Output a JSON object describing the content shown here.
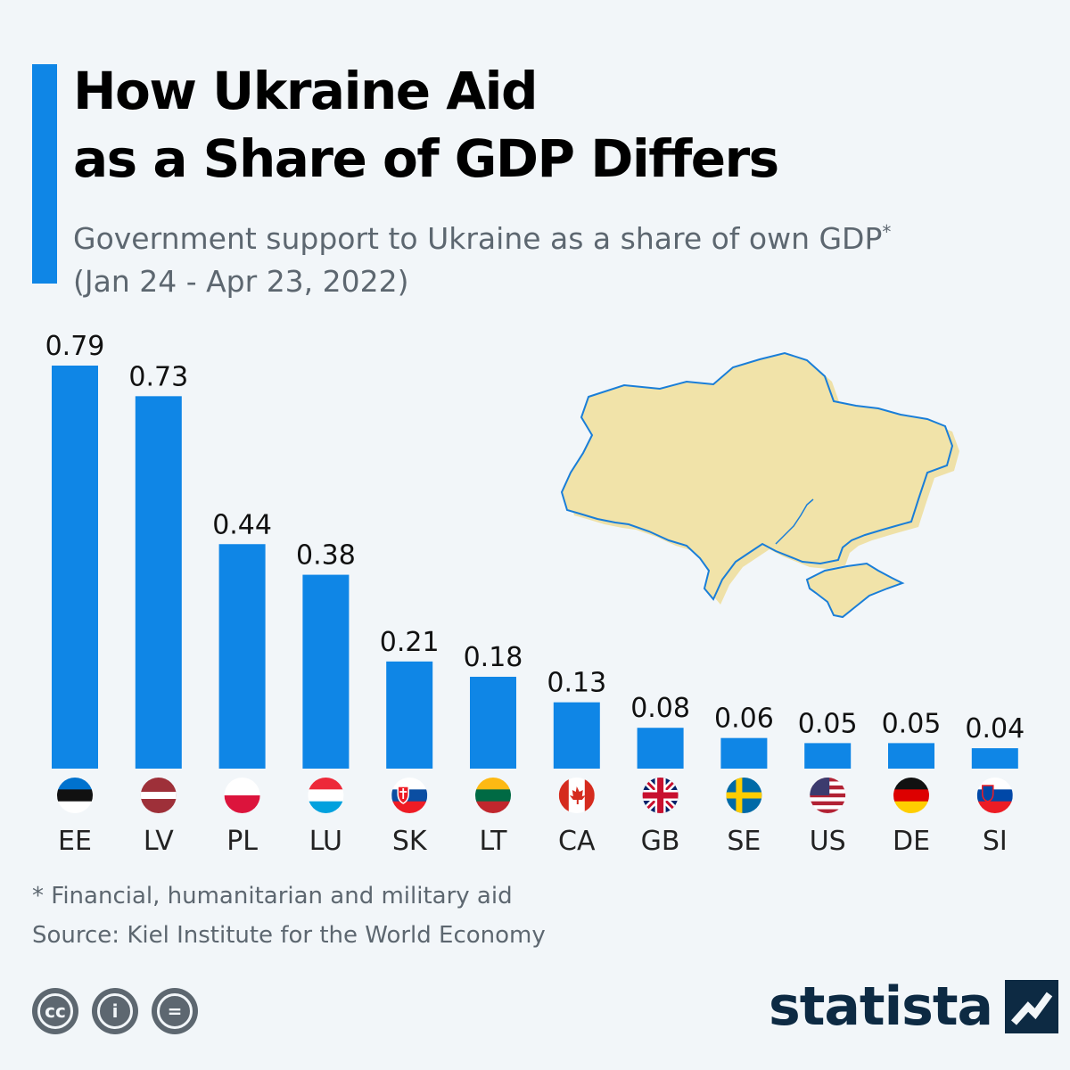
{
  "header": {
    "title_line1": "How Ukraine Aid",
    "title_line2": "as a Share of GDP Differs",
    "subtitle_line1": "Government support to Ukraine as a share of own GDP",
    "subtitle_asterisk": "*",
    "subtitle_line2": "(Jan 24 - Apr 23, 2022)"
  },
  "chart_data": {
    "type": "bar",
    "title": "How Ukraine Aid as a Share of GDP Differs",
    "subtitle": "Government support to Ukraine as a share of own GDP* (Jan 24 - Apr 23, 2022)",
    "categories": [
      "EE",
      "LV",
      "PL",
      "LU",
      "SK",
      "LT",
      "CA",
      "GB",
      "SE",
      "US",
      "DE",
      "SI"
    ],
    "values": [
      0.79,
      0.73,
      0.44,
      0.38,
      0.21,
      0.18,
      0.13,
      0.08,
      0.06,
      0.05,
      0.05,
      0.04
    ],
    "value_labels": [
      "0.79",
      "0.73",
      "0.44",
      "0.38",
      "0.21",
      "0.18",
      "0.13",
      "0.08",
      "0.06",
      "0.05",
      "0.05",
      "0.04"
    ],
    "ylim": [
      0,
      0.79
    ],
    "grid": false,
    "bar_color": "#0f86e6",
    "show_flags": true
  },
  "map": {
    "icon": "ukraine-map-icon",
    "fill": "#f1e3a9",
    "stroke": "#1a7ed8"
  },
  "footer": {
    "footnote": "* Financial, humanitarian and military aid",
    "source": "Source: Kiel Institute for the World Economy",
    "license_icons": [
      "cc-icon",
      "attribution-icon",
      "no-derivatives-icon"
    ],
    "cc_label": "cc",
    "attribution_label": "i",
    "nd_label": "=",
    "brand": "statista"
  },
  "colors": {
    "accent": "#0f86e6",
    "text_muted": "#5d6770",
    "brand": "#0d2a43",
    "background": "#f2f6f9"
  }
}
